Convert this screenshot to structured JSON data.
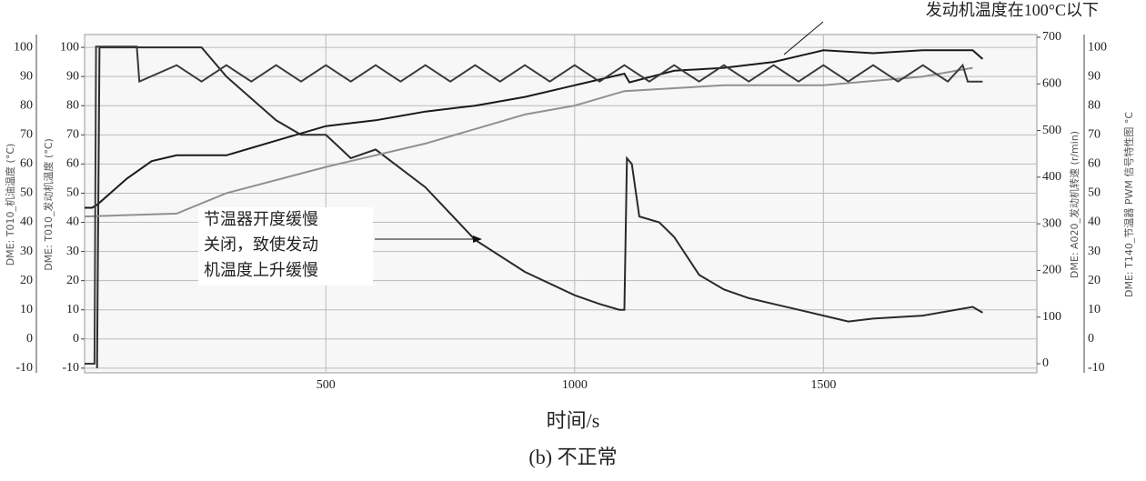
{
  "chart_data": {
    "type": "line",
    "title": "(b) 不正常",
    "x_label": "时间/s",
    "y_label": "DME: T010_发动机温度 (°C)",
    "y_outer_label": "DME: T010_机油温度 (°C)",
    "y2_label": "DME: A020_发动机转速 (r/min)",
    "y2_outer_label": "DME: T140_节温器 PWM 信号特性图 °C",
    "annotations": [
      "发动机温度在100°C以下",
      "节温器开度缓慢",
      "关闭，致使发动",
      "机温度上升缓慢"
    ],
    "xlim": [
      15,
      1929
    ],
    "xticks": [
      500,
      1000,
      1500
    ],
    "ylim": [
      -11.6,
      104.4
    ],
    "yticks": [
      -10,
      0,
      10,
      20,
      30,
      40,
      50,
      60,
      70,
      80,
      90,
      100
    ],
    "y2lim": [
      -19.5,
      705.8
    ],
    "y2ticks": [
      0,
      100,
      200,
      300,
      400,
      500,
      600,
      700
    ],
    "grid": true,
    "series": [
      {
        "name": "发动机温度",
        "color": "#1a1a1a",
        "x": [
          15,
          30,
          40,
          100,
          150,
          200,
          300,
          400,
          500,
          600,
          700,
          800,
          900,
          1000,
          1100,
          1110,
          1200,
          1300,
          1400,
          1500,
          1600,
          1700,
          1800,
          1820
        ],
        "values": [
          45,
          45,
          46,
          55,
          61,
          63,
          63,
          68,
          73,
          75,
          78,
          80,
          83,
          87,
          91,
          88,
          92,
          93,
          95,
          99,
          98,
          99,
          99,
          96
        ]
      },
      {
        "name": "节温器 PWM",
        "color": "#2a2a2a",
        "x": [
          40,
          45,
          250,
          300,
          400,
          450,
          500,
          550,
          600,
          700,
          800,
          900,
          1000,
          1050,
          1090,
          1100,
          1105,
          1115,
          1130,
          1170,
          1200,
          1250,
          1300,
          1350,
          1400,
          1450,
          1500,
          1550,
          1600,
          1700,
          1800,
          1820
        ],
        "values": [
          -10,
          100,
          100,
          90,
          75,
          70,
          70,
          62,
          65,
          52,
          34,
          23,
          15,
          12,
          10,
          10,
          62,
          60,
          42,
          40,
          35,
          22,
          17,
          14,
          12,
          10,
          8,
          6,
          7,
          8,
          11,
          9
        ]
      },
      {
        "name": "机油温度",
        "color": "#909090",
        "x": [
          15,
          200,
          300,
          500,
          700,
          900,
          1000,
          1100,
          1200,
          1300,
          1500,
          1700,
          1800
        ],
        "values": [
          42,
          43,
          50,
          59,
          67,
          77,
          80,
          85,
          86,
          87,
          87,
          90,
          93
        ]
      },
      {
        "name": "发动机转速",
        "color": "#3a3a3a",
        "axis": "y2",
        "x": [
          15,
          35,
          38,
          120,
          125,
          200,
          250,
          300,
          350,
          400,
          450,
          500,
          550,
          600,
          650,
          700,
          750,
          800,
          850,
          900,
          950,
          1000,
          1050,
          1100,
          1150,
          1200,
          1250,
          1300,
          1350,
          1400,
          1450,
          1500,
          1550,
          1600,
          1650,
          1700,
          1750,
          1780,
          1790,
          1820
        ],
        "values": [
          0,
          0,
          680,
          680,
          605,
          640,
          605,
          640,
          605,
          640,
          605,
          640,
          605,
          640,
          605,
          640,
          605,
          640,
          605,
          640,
          605,
          640,
          605,
          640,
          605,
          640,
          605,
          640,
          605,
          640,
          605,
          640,
          605,
          640,
          605,
          640,
          605,
          640,
          605,
          605
        ]
      }
    ]
  }
}
